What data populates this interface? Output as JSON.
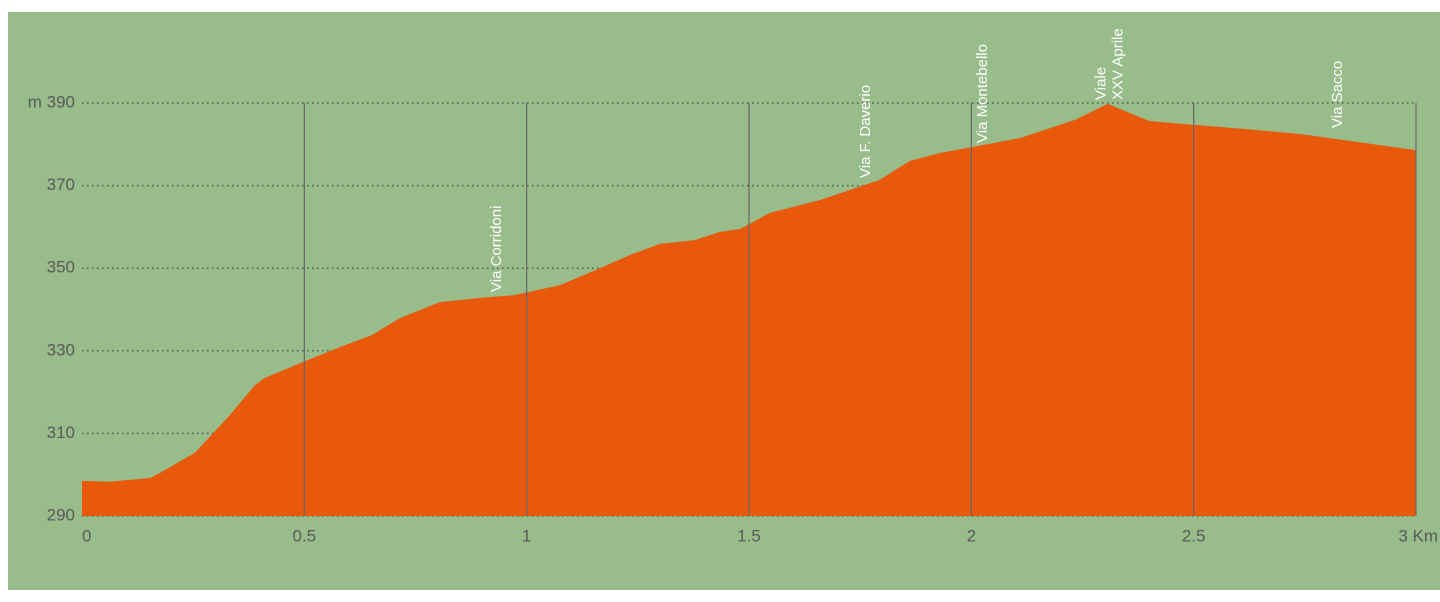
{
  "chart_data": {
    "type": "area",
    "x": [
      0,
      0.063,
      0.153,
      0.175,
      0.254,
      0.333,
      0.389,
      0.411,
      0.497,
      0.58,
      0.652,
      0.715,
      0.805,
      0.895,
      0.974,
      1.075,
      1.165,
      1.232,
      1.3,
      1.378,
      1.435,
      1.48,
      1.547,
      1.66,
      1.794,
      1.862,
      1.929,
      2.0,
      2.109,
      2.233,
      2.307,
      2.401,
      2.503,
      2.615,
      2.739,
      3.0
    ],
    "values": [
      298.5,
      298.3,
      299.2,
      300.4,
      305.3,
      314.5,
      321.7,
      323.4,
      327.3,
      330.9,
      333.8,
      337.9,
      341.8,
      342.8,
      343.5,
      345.9,
      350.0,
      353.2,
      355.9,
      356.8,
      358.8,
      359.5,
      363.4,
      366.5,
      371.4,
      376.0,
      377.9,
      379.3,
      381.5,
      385.9,
      389.8,
      385.6,
      384.7,
      383.7,
      382.5,
      378.6
    ],
    "color": "#e8590c",
    "xlim": [
      0,
      3
    ],
    "xticks": [
      0,
      0.5,
      1,
      1.5,
      2,
      2.5,
      {
        "value": 3,
        "label": "3 Km"
      }
    ],
    "ylim": [
      290,
      390
    ],
    "yticks": [
      290,
      310,
      330,
      350,
      370,
      {
        "value": 390,
        "label": "m 390"
      }
    ],
    "grid": true,
    "annotations": [
      [
        "Via Corridoni"
      ],
      [
        "Via F. Daverio"
      ],
      [
        "Via Montebello"
      ],
      [
        "Viale",
        "XXV Aprile"
      ],
      [
        "Via Sacco"
      ]
    ]
  }
}
